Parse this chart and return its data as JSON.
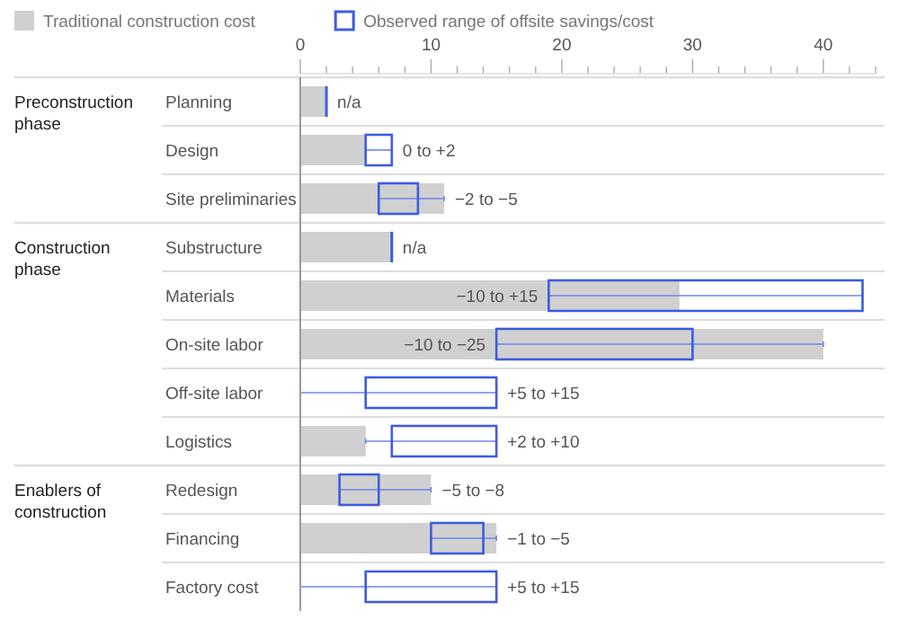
{
  "chart_data": {
    "type": "bar",
    "orientation": "horizontal",
    "legend": "top left",
    "categories": [
      "Planning",
      "Design",
      "Site preliminaries",
      "Substructure",
      "Materials",
      "On-site labor",
      "Off-site labor",
      "Logistics",
      "Redesign",
      "Financing",
      "Factory cost"
    ],
    "series": [
      {
        "name": "Traditional construction cost",
        "color": "#d0d0d0",
        "values": [
          2,
          5,
          11,
          7,
          29,
          40,
          0,
          5,
          10,
          15,
          0
        ],
        "errors": [
          null,
          [
            5,
            7
          ],
          [
            6,
            11
          ],
          null,
          [
            19,
            43
          ],
          [
            15,
            40
          ],
          [
            0,
            15
          ],
          [
            5,
            15
          ],
          [
            3,
            10
          ],
          [
            10,
            15
          ],
          [
            0,
            15
          ]
        ]
      },
      {
        "name": "Observed range of offsite savings/cost",
        "color": "#3d5ce0",
        "base": [
          null,
          5,
          6,
          null,
          19,
          15,
          5,
          7,
          3,
          10,
          5
        ],
        "values": [
          null,
          2,
          3,
          null,
          24,
          15,
          10,
          8,
          3,
          4,
          10
        ]
      }
    ],
    "xlim": [
      0,
      44
    ],
    "xticks": [
      0,
      {
        "value": 2,
        "label": null
      },
      {
        "value": 4,
        "label": null
      },
      {
        "value": 6,
        "label": null
      },
      {
        "value": 8,
        "label": null
      },
      10,
      {
        "value": 12,
        "label": null
      },
      {
        "value": 14,
        "label": null
      },
      {
        "value": 16,
        "label": null
      },
      {
        "value": 18,
        "label": null
      },
      20,
      {
        "value": 22,
        "label": null
      },
      {
        "value": 24,
        "label": null
      },
      {
        "value": 26,
        "label": null
      },
      {
        "value": 28,
        "label": null
      },
      30,
      {
        "value": 32,
        "label": null
      },
      {
        "value": 34,
        "label": null
      },
      {
        "value": 36,
        "label": null
      },
      {
        "value": 38,
        "label": null
      },
      40,
      {
        "value": 42,
        "label": null
      },
      {
        "value": 44,
        "label": null
      }
    ],
    "annotations": [
      "Preconstruction phase",
      "Construction phase",
      "Enablers of construction",
      {
        "text": "n/a",
        "x": 2,
        "y": "Planning"
      },
      {
        "text": "0 to +2",
        "x": 7,
        "y": "Design"
      },
      {
        "text": "−2 to −5",
        "x": 11,
        "y": "Site preliminaries"
      },
      {
        "text": "n/a",
        "x": 7,
        "y": "Substructure"
      },
      {
        "text": "−10 to +15",
        "x": 19,
        "y": "Materials"
      },
      {
        "text": "−10 to −25",
        "x": 15,
        "y": "On-site labor"
      },
      {
        "text": "+5 to +15",
        "x": 15,
        "y": "Off-site labor"
      },
      {
        "text": "+2 to +10",
        "x": 15,
        "y": "Logistics"
      },
      {
        "text": "−5 to −8",
        "x": 10,
        "y": "Redesign"
      },
      {
        "text": "−1 to −5",
        "x": 15,
        "y": "Financing"
      },
      {
        "text": "+5 to +15",
        "x": 15,
        "y": "Factory cost"
      }
    ]
  }
}
